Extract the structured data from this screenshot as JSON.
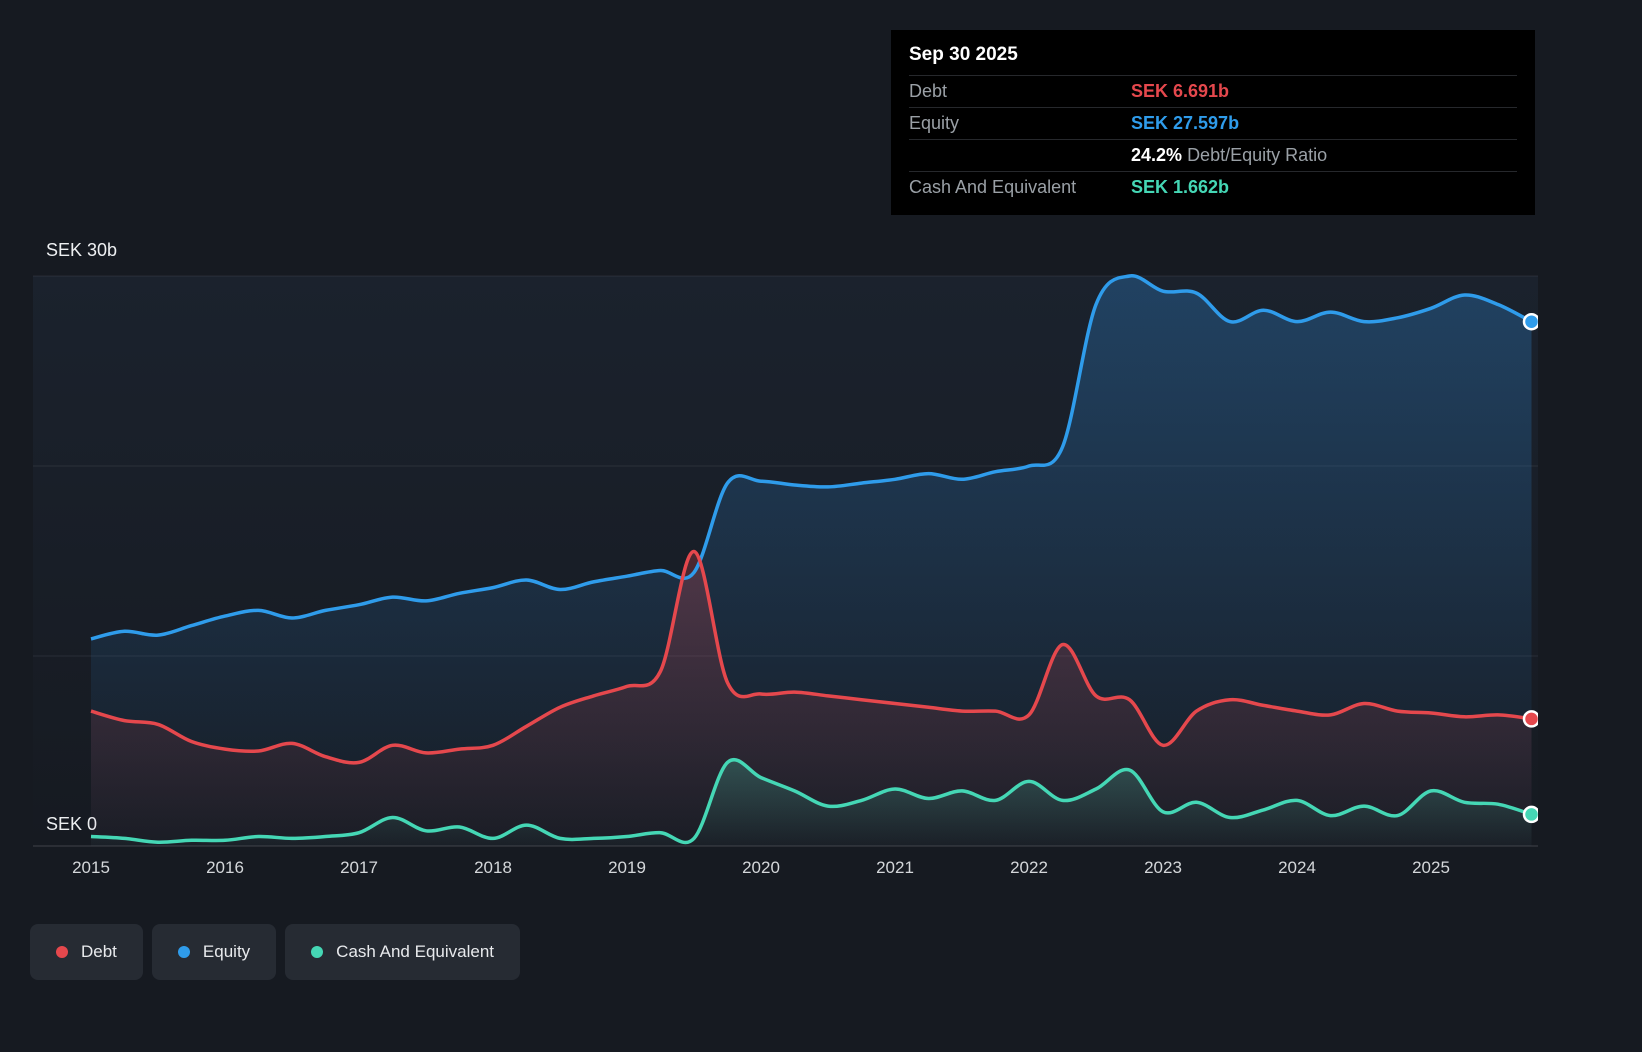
{
  "tooltip": {
    "date": "Sep 30 2025",
    "rows": [
      {
        "label": "Debt",
        "value": "SEK 6.691b",
        "color": "#e5484d"
      },
      {
        "label": "Equity",
        "value": "SEK 27.597b",
        "color": "#2f9ceb"
      },
      {
        "label": "Cash And Equivalent",
        "value": "SEK 1.662b",
        "color": "#45d7b5"
      }
    ],
    "ratio": {
      "value": "24.2%",
      "label": "Debt/Equity Ratio"
    }
  },
  "axis": {
    "y_top": "SEK 30b",
    "y_bottom": "SEK 0"
  },
  "legend": [
    {
      "label": "Debt",
      "color": "#e5484d"
    },
    {
      "label": "Equity",
      "color": "#2f9ceb"
    },
    {
      "label": "Cash And Equivalent",
      "color": "#45d7b5"
    }
  ],
  "chart_data": {
    "type": "area",
    "title": "",
    "ylabel_top": "SEK 30b",
    "ylabel_bottom": "SEK 0",
    "ylim": [
      0,
      30
    ],
    "y_gridlines": [
      10,
      20,
      30
    ],
    "x_ticks": [
      "2015",
      "2016",
      "2017",
      "2018",
      "2019",
      "2020",
      "2021",
      "2022",
      "2023",
      "2024",
      "2025"
    ],
    "legend_position": "bottom-left",
    "x": [
      2015.0,
      2015.25,
      2015.5,
      2015.75,
      2016.0,
      2016.25,
      2016.5,
      2016.75,
      2017.0,
      2017.25,
      2017.5,
      2017.75,
      2018.0,
      2018.25,
      2018.5,
      2018.75,
      2019.0,
      2019.25,
      2019.5,
      2019.75,
      2020.0,
      2020.25,
      2020.5,
      2020.75,
      2021.0,
      2021.25,
      2021.5,
      2021.75,
      2022.0,
      2022.25,
      2022.5,
      2022.75,
      2023.0,
      2023.25,
      2023.5,
      2023.75,
      2024.0,
      2024.25,
      2024.5,
      2024.75,
      2025.0,
      2025.25,
      2025.5,
      2025.75
    ],
    "series": [
      {
        "name": "Equity",
        "color": "#2f9ceb",
        "fill": "rgba(47,140,220,0.30)",
        "values": [
          10.9,
          11.3,
          11.1,
          11.6,
          12.1,
          12.4,
          12.0,
          12.4,
          12.7,
          13.1,
          12.9,
          13.3,
          13.6,
          14.0,
          13.5,
          13.9,
          14.2,
          14.5,
          14.4,
          19.1,
          19.2,
          19.0,
          18.9,
          19.1,
          19.3,
          19.6,
          19.3,
          19.7,
          20.0,
          21.0,
          28.5,
          30.0,
          29.2,
          29.1,
          27.6,
          28.2,
          27.6,
          28.1,
          27.6,
          27.8,
          28.3,
          29.0,
          28.5,
          27.597
        ]
      },
      {
        "name": "Debt",
        "color": "#e5484d",
        "fill": "rgba(229,72,77,0.26)",
        "values": [
          7.1,
          6.6,
          6.4,
          5.5,
          5.1,
          5.0,
          5.4,
          4.7,
          4.4,
          5.3,
          4.9,
          5.1,
          5.3,
          6.3,
          7.3,
          7.9,
          8.4,
          9.2,
          15.5,
          8.6,
          8.0,
          8.1,
          7.9,
          7.7,
          7.5,
          7.3,
          7.1,
          7.1,
          6.9,
          10.6,
          7.9,
          7.7,
          5.3,
          7.1,
          7.7,
          7.4,
          7.1,
          6.9,
          7.5,
          7.1,
          7.0,
          6.8,
          6.9,
          6.691
        ]
      },
      {
        "name": "Cash And Equivalent",
        "color": "#45d7b5",
        "fill": "rgba(69,215,181,0.24)",
        "values": [
          0.5,
          0.4,
          0.2,
          0.3,
          0.3,
          0.5,
          0.4,
          0.5,
          0.7,
          1.5,
          0.8,
          1.0,
          0.4,
          1.1,
          0.4,
          0.4,
          0.5,
          0.7,
          0.4,
          4.4,
          3.6,
          2.9,
          2.1,
          2.4,
          3.0,
          2.5,
          2.9,
          2.4,
          3.4,
          2.4,
          3.0,
          4.0,
          1.8,
          2.3,
          1.5,
          1.9,
          2.4,
          1.6,
          2.1,
          1.6,
          2.9,
          2.3,
          2.2,
          1.662
        ]
      }
    ]
  }
}
